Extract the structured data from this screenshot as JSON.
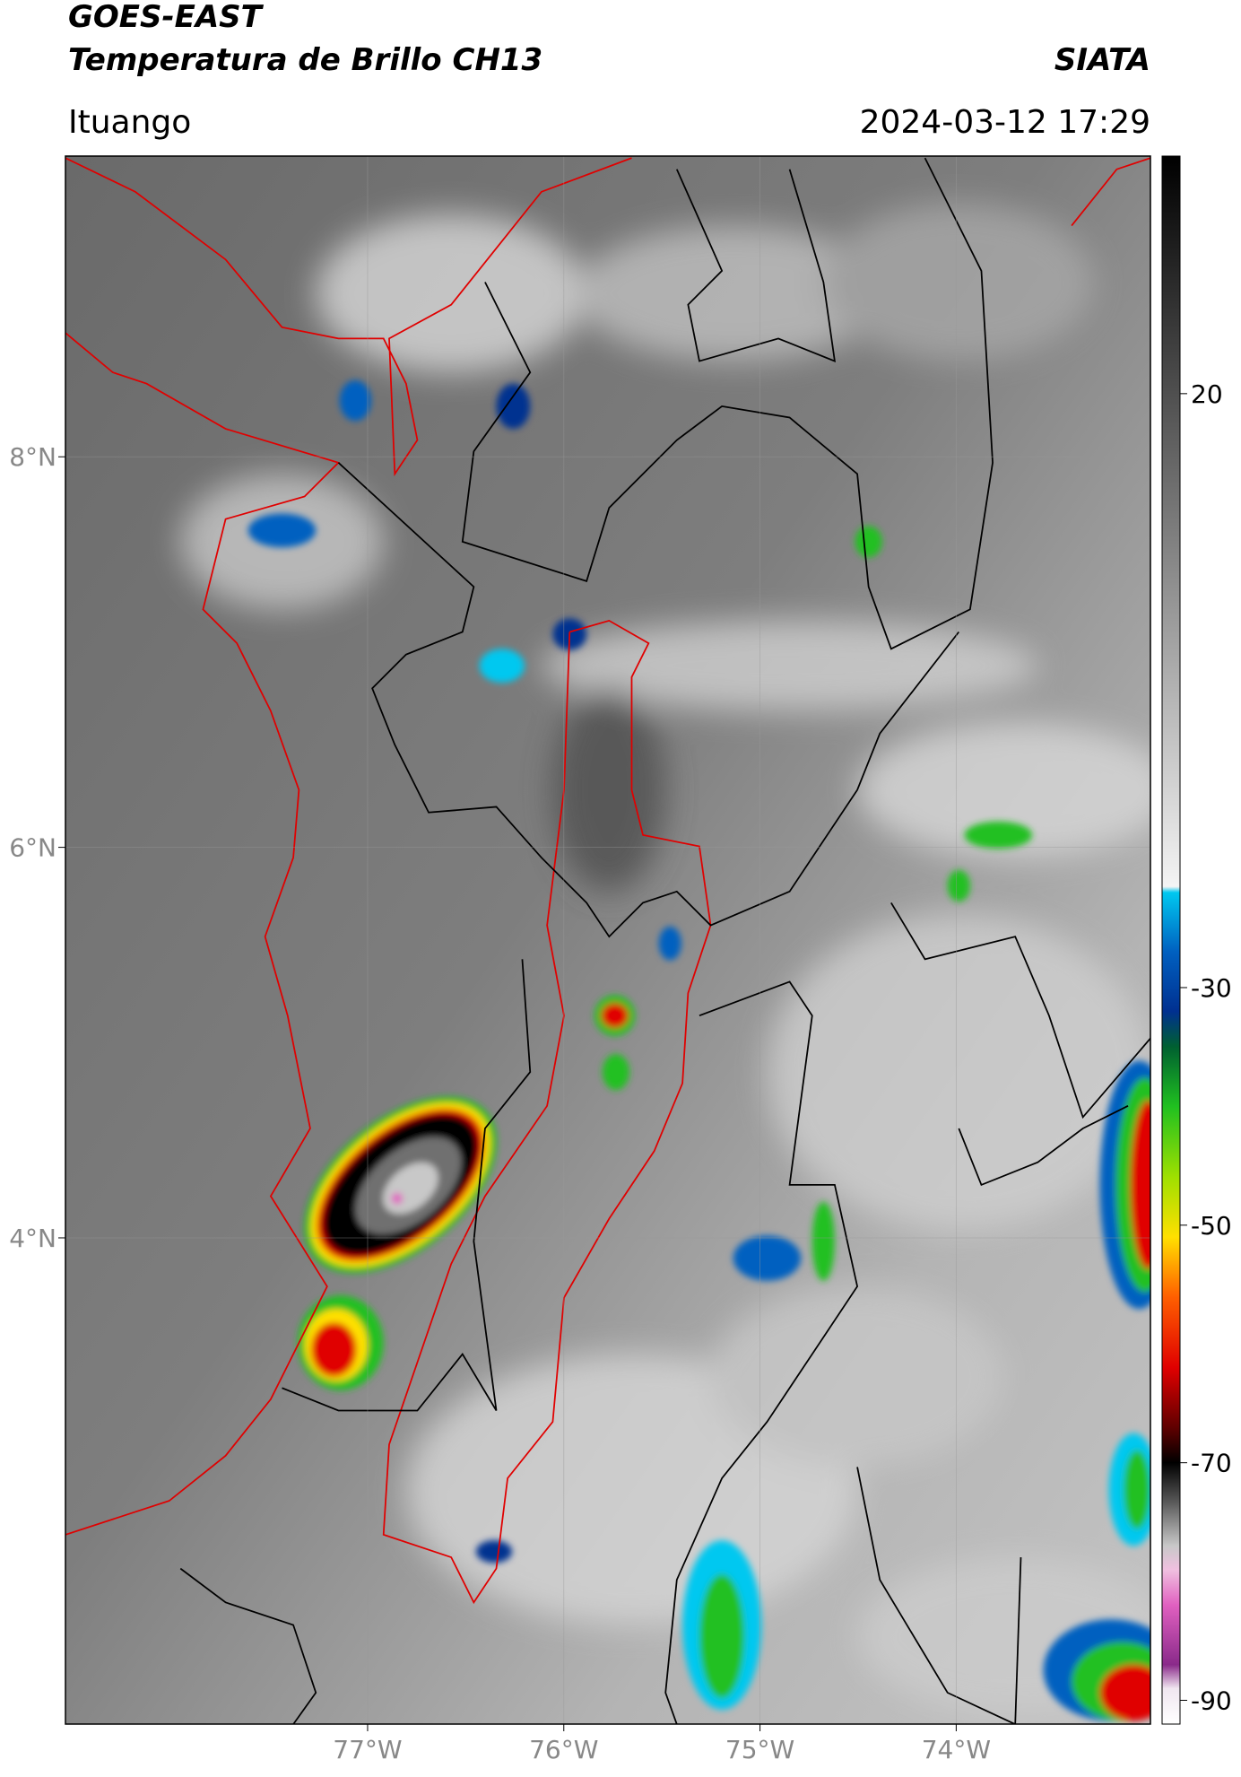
{
  "chart_data": {
    "type": "map",
    "title": "GOES-EAST",
    "subtitle": "Temperatura de Brillo CH13",
    "source": "SIATA",
    "location": "Ituango",
    "datetime": "2024-03-12 17:29",
    "xlim": [
      -78.54,
      -73.01
    ],
    "ylim": [
      1.51,
      9.54
    ],
    "xticks": [
      {
        "value": -77,
        "label": "77°W"
      },
      {
        "value": -76,
        "label": "76°W"
      },
      {
        "value": -75,
        "label": "75°W"
      },
      {
        "value": -74,
        "label": "74°W"
      }
    ],
    "yticks": [
      {
        "value": 4,
        "label": "4°N"
      },
      {
        "value": 6,
        "label": "6°N"
      },
      {
        "value": 8,
        "label": "8°N"
      }
    ],
    "grid": true,
    "colorbar": {
      "lim": [
        -92,
        40
      ],
      "ticks": [
        20,
        -30,
        -50,
        -70,
        -90
      ],
      "colormap": [
        [
          -92,
          "#ffffff"
        ],
        [
          -89,
          "#f0e6f0"
        ],
        [
          -87,
          "#8a2a8a"
        ],
        [
          -82,
          "#e060c0"
        ],
        [
          -79,
          "#f0c0e0"
        ],
        [
          -77,
          "#c8c8c8"
        ],
        [
          -73,
          "#505050"
        ],
        [
          -70,
          "#000000"
        ],
        [
          -67,
          "#600000"
        ],
        [
          -62,
          "#e00000"
        ],
        [
          -56,
          "#ff6000"
        ],
        [
          -51,
          "#ffe000"
        ],
        [
          -46,
          "#a0e000"
        ],
        [
          -40,
          "#20c020"
        ],
        [
          -35,
          "#006030"
        ],
        [
          -32,
          "#003090"
        ],
        [
          -27,
          "#0060c0"
        ],
        [
          -22,
          "#00c8f0"
        ],
        [
          -21.5,
          "#f4f4f4"
        ],
        [
          40,
          "#000000"
        ]
      ]
    }
  }
}
